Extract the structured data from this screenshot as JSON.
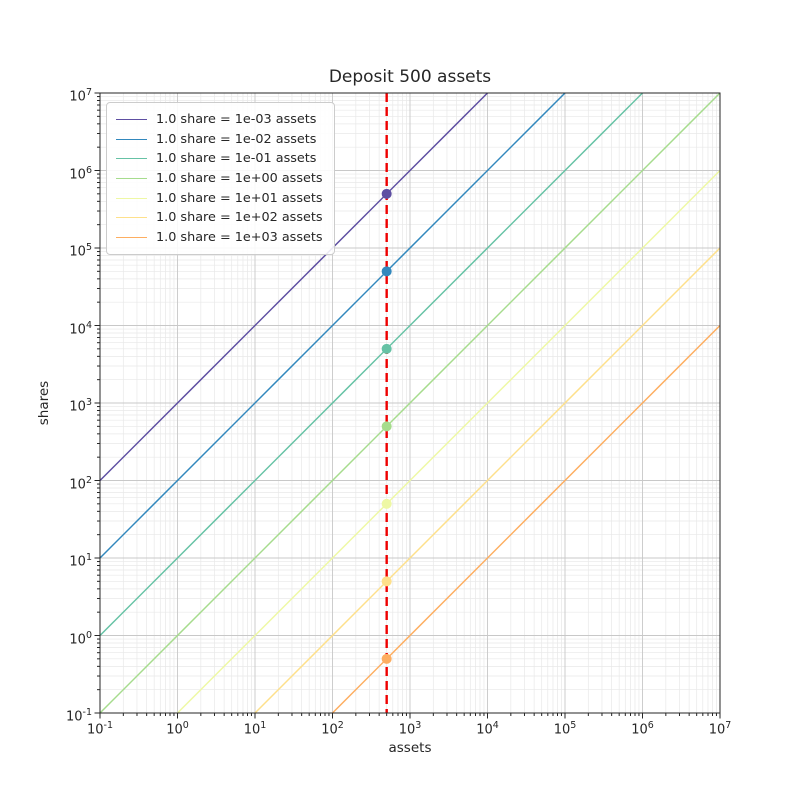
{
  "chart_data": {
    "type": "line",
    "title": "Deposit 500 assets",
    "xlabel": "assets",
    "ylabel": "shares",
    "xscale": "log",
    "yscale": "log",
    "xlim": [
      0.1,
      10000000
    ],
    "ylim": [
      0.1,
      10000000
    ],
    "x_tick_exponents": [
      -1,
      0,
      1,
      2,
      3,
      4,
      5,
      6,
      7
    ],
    "y_tick_exponents": [
      -1,
      0,
      1,
      2,
      3,
      4,
      5,
      6,
      7
    ],
    "minor_tick_multiples": [
      2,
      3,
      4,
      5,
      6,
      7,
      8,
      9
    ],
    "grid": {
      "major": true,
      "minor": true
    },
    "legend_position": "upper left",
    "deposit": {
      "assets": 500,
      "vline_color": "#ee0000",
      "vline_style": "dashed"
    },
    "series": [
      {
        "label": "1.0 share = 1e-03 assets",
        "assets_per_share": 0.001,
        "color": "#5e4fa2",
        "point": {
          "assets": 500,
          "shares": 500000
        }
      },
      {
        "label": "1.0 share = 1e-02 assets",
        "assets_per_share": 0.01,
        "color": "#3288bd",
        "point": {
          "assets": 500,
          "shares": 50000
        }
      },
      {
        "label": "1.0 share = 1e-01 assets",
        "assets_per_share": 0.1,
        "color": "#66c2a5",
        "point": {
          "assets": 500,
          "shares": 5000
        }
      },
      {
        "label": "1.0 share = 1e+00 assets",
        "assets_per_share": 1,
        "color": "#a6dc8d",
        "point": {
          "assets": 500,
          "shares": 500
        }
      },
      {
        "label": "1.0 share = 1e+01 assets",
        "assets_per_share": 10,
        "color": "#eef8a4",
        "point": {
          "assets": 500,
          "shares": 50
        }
      },
      {
        "label": "1.0 share = 1e+02 assets",
        "assets_per_share": 100,
        "color": "#fee08b",
        "point": {
          "assets": 500,
          "shares": 5
        }
      },
      {
        "label": "1.0 share = 1e+03 assets",
        "assets_per_share": 1000,
        "color": "#fdae61",
        "point": {
          "assets": 500,
          "shares": 0.5
        }
      }
    ]
  }
}
